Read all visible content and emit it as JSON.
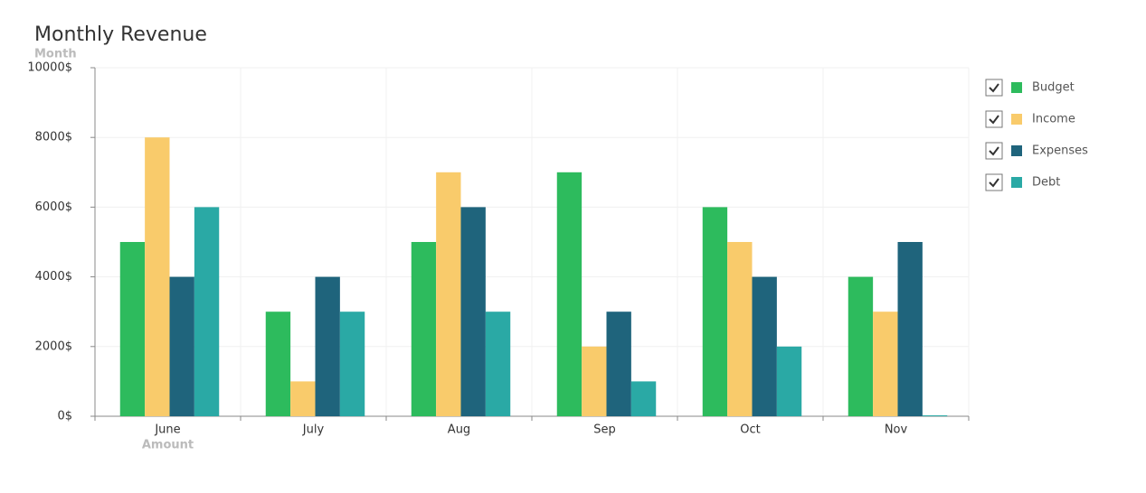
{
  "chart_data": {
    "type": "bar",
    "title": "Monthly Revenue",
    "y_label": "Month",
    "x_label": "Amount",
    "categories": [
      "June",
      "July",
      "Aug",
      "Sep",
      "Oct",
      "Nov"
    ],
    "series": [
      {
        "name": "Budget",
        "color": "#2dbb5d",
        "values": [
          5000,
          3000,
          5000,
          7000,
          6000,
          4000
        ]
      },
      {
        "name": "Income",
        "color": "#f9cb6b",
        "values": [
          8000,
          1000,
          7000,
          2000,
          5000,
          3000
        ]
      },
      {
        "name": "Expenses",
        "color": "#1f647c",
        "values": [
          4000,
          4000,
          6000,
          3000,
          4000,
          5000
        ]
      },
      {
        "name": "Debt",
        "color": "#2aa9a5",
        "values": [
          6000,
          3000,
          3000,
          1000,
          2000,
          0
        ]
      }
    ],
    "ylim": [
      0,
      10000
    ],
    "yticks": [
      {
        "value": 0,
        "label": "0$"
      },
      {
        "value": 2000,
        "label": "2000$"
      },
      {
        "value": 4000,
        "label": "4000$"
      },
      {
        "value": 6000,
        "label": "6000$"
      },
      {
        "value": 8000,
        "label": "8000$"
      },
      {
        "value": 10000,
        "label": "10000$"
      }
    ],
    "grid": true,
    "legend": "right"
  }
}
